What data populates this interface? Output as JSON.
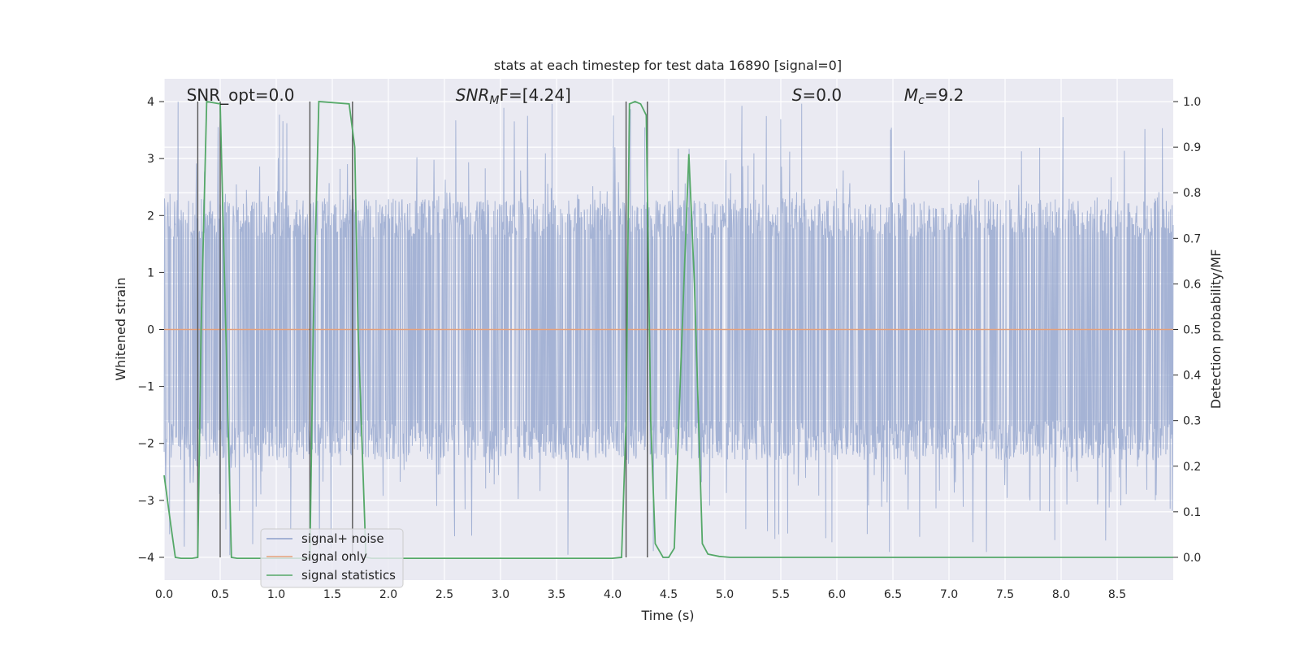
{
  "chart_data": {
    "type": "line",
    "title": "stats at each timestep for test data 16890 [signal=0]",
    "xlabel": "Time (s)",
    "ylabel_left": "Whitened strain",
    "ylabel_right": "Detection probability/MF",
    "xlim": [
      0.0,
      9.0
    ],
    "ylim_left": [
      -4.4,
      4.4
    ],
    "ylim_right": [
      -0.05,
      1.05
    ],
    "x_ticks": [
      0.0,
      0.5,
      1.0,
      1.5,
      2.0,
      2.5,
      3.0,
      3.5,
      4.0,
      4.5,
      5.0,
      5.5,
      6.0,
      6.5,
      7.0,
      7.5,
      8.0,
      8.5
    ],
    "x_tick_labels": [
      "0.0",
      "0.5",
      "1.0",
      "1.5",
      "2.0",
      "2.5",
      "3.0",
      "3.5",
      "4.0",
      "4.5",
      "5.0",
      "5.5",
      "6.0",
      "6.5",
      "7.0",
      "7.5",
      "8.0",
      "8.5"
    ],
    "y_left_ticks": [
      -4,
      -3,
      -2,
      -1,
      0,
      1,
      2,
      3,
      4
    ],
    "y_left_tick_labels": [
      "−4",
      "−3",
      "−2",
      "−1",
      "0",
      "1",
      "2",
      "3",
      "4"
    ],
    "y_right_ticks": [
      0.0,
      0.1,
      0.2,
      0.3,
      0.4,
      0.5,
      0.6,
      0.7,
      0.8,
      0.9,
      1.0
    ],
    "y_right_tick_labels": [
      "0.0",
      "0.1",
      "0.2",
      "0.3",
      "0.4",
      "0.5",
      "0.6",
      "0.7",
      "0.8",
      "0.9",
      "1.0"
    ],
    "grid": true,
    "legend": {
      "position": "lower-left",
      "entries": [
        {
          "label": "signal+ noise",
          "color": "#8da0cb"
        },
        {
          "label": "signal only",
          "color": "#e5a07a"
        },
        {
          "label": "signal statistics",
          "color": "#55a868"
        }
      ]
    },
    "annotations": [
      {
        "id": "snr_opt",
        "text": "SNR_opt=0.0",
        "x": 0.2
      },
      {
        "id": "snr_mf",
        "label": "SNR",
        "sub": "M",
        "rest": "F=[4.24]",
        "x": 2.6
      },
      {
        "id": "s",
        "label": "S",
        "rest": "=0.0",
        "x": 5.6
      },
      {
        "id": "mc",
        "label": "M",
        "sub": "c",
        "rest": "=9.2",
        "x": 6.6
      }
    ],
    "noise_band": {
      "core_amplitude": 1.6,
      "typical_peak": 2.3,
      "max_peak": 4.0,
      "min_peak": -4.0
    },
    "signal_only": {
      "x": [
        0.0,
        9.0
      ],
      "y": [
        0.0,
        0.0
      ]
    },
    "vertical_lines": [
      0.3,
      0.5,
      1.3,
      1.68,
      4.12,
      4.31
    ],
    "signal_statistics": {
      "x": [
        0.0,
        0.06,
        0.1,
        0.15,
        0.2,
        0.25,
        0.3,
        0.33,
        0.38,
        0.5,
        0.55,
        0.6,
        0.65,
        1.0,
        1.3,
        1.33,
        1.38,
        1.65,
        1.7,
        1.73,
        1.8,
        1.85,
        2.0,
        3.0,
        4.0,
        4.08,
        4.12,
        4.15,
        4.2,
        4.25,
        4.3,
        4.34,
        4.38,
        4.45,
        4.5,
        4.55,
        4.62,
        4.68,
        4.73,
        4.8,
        4.85,
        4.95,
        5.05,
        6.0,
        7.0,
        8.0,
        9.0
      ],
      "y": [
        0.18,
        0.07,
        0.0,
        -0.002,
        -0.002,
        -0.002,
        0.0,
        0.5,
        1.0,
        0.995,
        0.5,
        0.0,
        -0.002,
        -0.002,
        -0.002,
        0.5,
        1.0,
        0.995,
        0.9,
        0.5,
        0.0,
        -0.002,
        -0.002,
        -0.002,
        -0.002,
        0.0,
        0.3,
        0.995,
        1.0,
        0.995,
        0.97,
        0.3,
        0.03,
        0.0,
        0.0,
        0.02,
        0.5,
        0.885,
        0.6,
        0.03,
        0.007,
        0.002,
        0.0,
        0.0,
        0.0,
        0.0,
        0.0
      ]
    }
  }
}
